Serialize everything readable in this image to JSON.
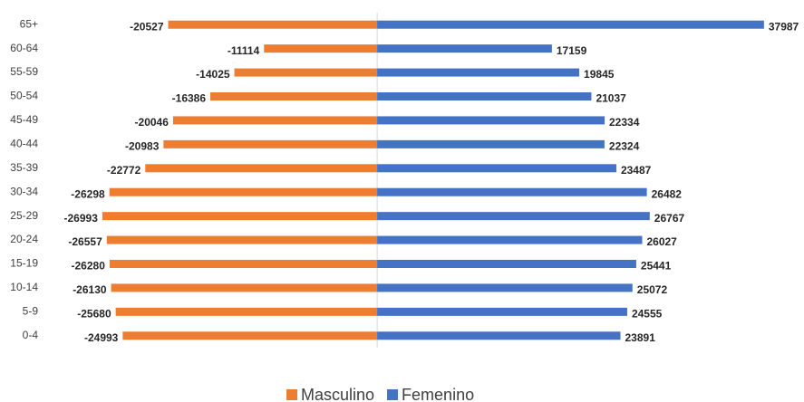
{
  "chart_data": {
    "type": "bar",
    "orientation": "horizontal",
    "categories": [
      "0-4",
      "5-9",
      "10-14",
      "15-19",
      "20-24",
      "25-29",
      "30-34",
      "35-39",
      "40-44",
      "45-49",
      "50-54",
      "55-59",
      "60-64",
      "65+"
    ],
    "series": [
      {
        "name": "Masculino",
        "color": "#ed7d31",
        "values": [
          -24993,
          -25680,
          -26130,
          -26280,
          -26557,
          -26993,
          -26298,
          -22772,
          -20983,
          -20046,
          -16386,
          -14025,
          -11114,
          -20527
        ]
      },
      {
        "name": "Femenino",
        "color": "#4472c4",
        "values": [
          23891,
          24555,
          25072,
          25441,
          26027,
          26767,
          26482,
          23487,
          22324,
          22334,
          21037,
          19845,
          17159,
          37987
        ]
      }
    ],
    "xlim": [
      -31700,
      38000
    ],
    "legend": "bottom"
  }
}
